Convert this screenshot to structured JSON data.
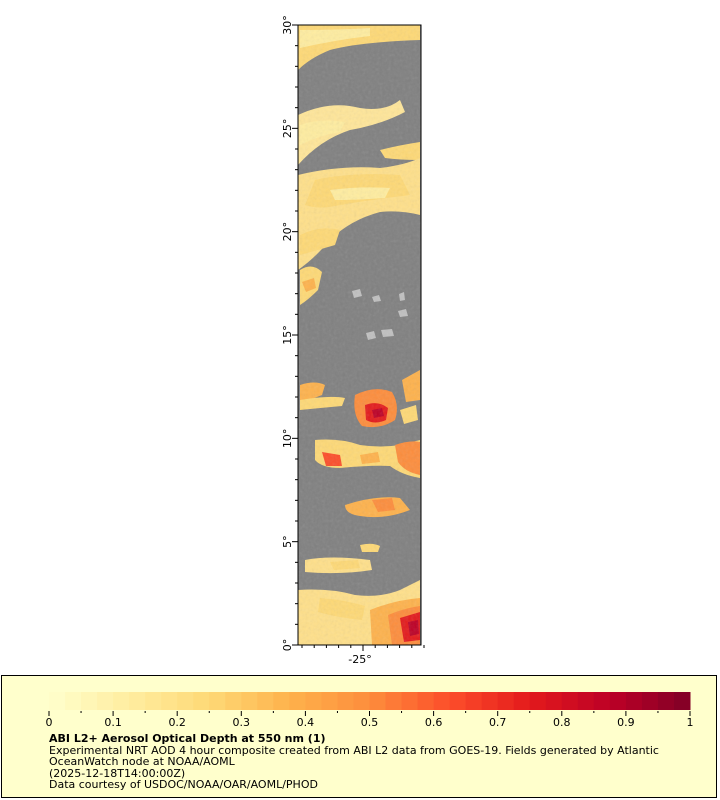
{
  "map": {
    "lat_ticks": [
      "0°",
      "5°",
      "10°",
      "15°",
      "20°",
      "25°",
      "30°"
    ],
    "lon_ticks": [
      "-25°"
    ],
    "lat_range": [
      0,
      30
    ],
    "ocean_color": "#808080",
    "land_color": "#c0c0c0"
  },
  "colorbar": {
    "min": 0,
    "max": 1,
    "ticks": [
      "0",
      "0.1",
      "0.2",
      "0.3",
      "0.4",
      "0.5",
      "0.6",
      "0.7",
      "0.8",
      "0.9",
      "1"
    ],
    "colors": [
      "#ffffcc",
      "#ffeda0",
      "#fed976",
      "#feb24c",
      "#fd8d3c",
      "#fc4e2a",
      "#e31a1c",
      "#bd0026",
      "#800026"
    ]
  },
  "caption": {
    "title": "ABI L2+ Aerosol Optical Depth at 550 nm (1)",
    "line1": "Experimental NRT AOD 4 hour composite created from ABI L2 data from GOES-19. Fields generated by Atlantic",
    "line2": "OceanWatch node at NOAA/AOML",
    "line3": "(2025-12-18T14:00:00Z)",
    "line4": "Data courtesy of USDOC/NOAA/OAR/AOML/PHOD"
  }
}
